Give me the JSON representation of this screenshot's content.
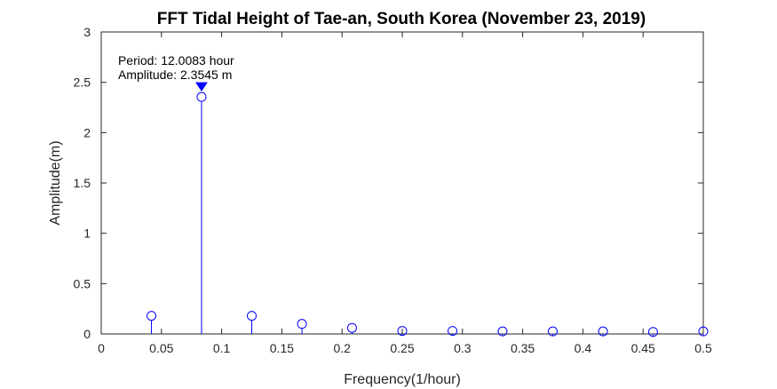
{
  "chart_data": {
    "type": "stem",
    "title": "FFT Tidal Height of Tae-an, South Korea (November 23, 2019)",
    "xlabel": "Frequency(1/hour)",
    "ylabel": "Amplitude(m)",
    "xlim": [
      0,
      0.5
    ],
    "ylim": [
      0,
      3
    ],
    "x_ticks": [
      0,
      0.05,
      0.1,
      0.15,
      0.2,
      0.25,
      0.3,
      0.35,
      0.4,
      0.45,
      0.5
    ],
    "x_tick_labels": [
      "0",
      "0.05",
      "0.1",
      "0.15",
      "0.2",
      "0.25",
      "0.3",
      "0.35",
      "0.4",
      "0.45",
      "0.5"
    ],
    "y_ticks": [
      0,
      0.5,
      1,
      1.5,
      2,
      2.5,
      3
    ],
    "y_tick_labels": [
      "0",
      "0.5",
      "1",
      "1.5",
      "2",
      "2.5",
      "3"
    ],
    "grid": false,
    "series": [
      {
        "color": "#0000ff",
        "marker": "circle",
        "x": [
          0.0417,
          0.0833,
          0.125,
          0.1667,
          0.2083,
          0.25,
          0.2917,
          0.3333,
          0.375,
          0.4167,
          0.4583,
          0.5
        ],
        "y": [
          0.18,
          2.3545,
          0.18,
          0.1,
          0.06,
          0.03,
          0.03,
          0.025,
          0.025,
          0.025,
          0.02,
          0.025
        ]
      }
    ],
    "annotation": {
      "x": 0.0833,
      "y": 2.3545,
      "marker": "down-triangle",
      "color": "#0000ff",
      "line1": "Period: 12.0083 hour",
      "line2": "Amplitude: 2.3545 m"
    }
  }
}
